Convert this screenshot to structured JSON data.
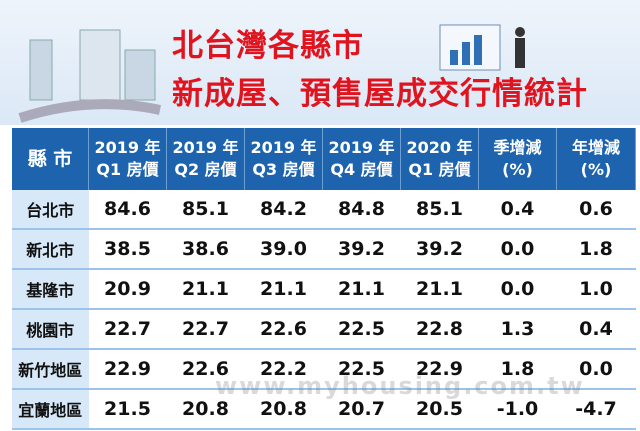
{
  "header": {
    "title_lines": [
      "北台灣各縣市",
      "新成屋、預售屋成交行情統計"
    ]
  },
  "table": {
    "columns": [
      [
        "縣 市"
      ],
      [
        "2019 年",
        "Q1 房價"
      ],
      [
        "2019 年",
        "Q2 房價"
      ],
      [
        "2019 年",
        "Q3 房價"
      ],
      [
        "2019 年",
        "Q4 房價"
      ],
      [
        "2020 年",
        "Q1 房價"
      ],
      [
        "季增減",
        "(%)"
      ],
      [
        "年增減",
        "(%)"
      ]
    ],
    "rows": [
      [
        "台北市",
        "84.6",
        "85.1",
        "84.2",
        "84.8",
        "85.1",
        "0.4",
        "0.6"
      ],
      [
        "新北市",
        "38.5",
        "38.6",
        "39.0",
        "39.2",
        "39.2",
        "0.0",
        "1.8"
      ],
      [
        "基隆市",
        "20.9",
        "21.1",
        "21.1",
        "21.1",
        "21.1",
        "0.0",
        "1.0"
      ],
      [
        "桃園市",
        "22.7",
        "22.7",
        "22.6",
        "22.5",
        "22.8",
        "1.3",
        "0.4"
      ],
      [
        "新竹地區",
        "22.9",
        "22.6",
        "22.2",
        "22.5",
        "22.9",
        "1.8",
        "0.0"
      ],
      [
        "宜蘭地區",
        "21.5",
        "20.8",
        "20.8",
        "20.7",
        "20.5",
        "-1.0",
        "-4.7"
      ]
    ]
  },
  "watermark": "www.myhousing.com.tw"
}
